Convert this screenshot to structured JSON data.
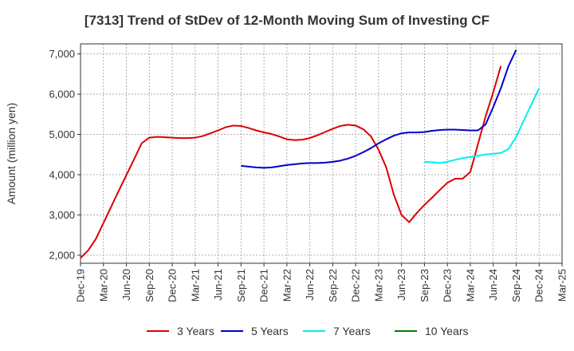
{
  "chart_data": {
    "type": "line",
    "title": "[7313]  Trend of StDev of 12-Month Moving Sum of Investing CF",
    "ylabel": "Amount (million yen)",
    "xlabel": "",
    "ylim": [
      1800,
      7250
    ],
    "yticks": [
      2000,
      3000,
      4000,
      5000,
      6000,
      7000
    ],
    "ytick_labels": [
      "2,000",
      "3,000",
      "4,000",
      "5,000",
      "6,000",
      "7,000"
    ],
    "xticks": [
      "Dec-19",
      "Mar-20",
      "Jun-20",
      "Sep-20",
      "Dec-20",
      "Mar-21",
      "Jun-21",
      "Sep-21",
      "Dec-21",
      "Mar-22",
      "Jun-22",
      "Sep-22",
      "Dec-22",
      "Mar-23",
      "Jun-23",
      "Sep-23",
      "Dec-23",
      "Mar-24",
      "Jun-24",
      "Sep-24",
      "Dec-24",
      "Mar-25"
    ],
    "grid": true,
    "legend_position": "bottom",
    "series": [
      {
        "name": "3 Years",
        "color": "#dd0000",
        "start_month": 0,
        "values": [
          1930,
          2120,
          2400,
          2800,
          3200,
          3600,
          3990,
          4380,
          4780,
          4920,
          4940,
          4930,
          4920,
          4910,
          4910,
          4920,
          4960,
          5030,
          5100,
          5180,
          5220,
          5210,
          5160,
          5100,
          5050,
          5010,
          4950,
          4880,
          4860,
          4870,
          4910,
          4980,
          5060,
          5140,
          5210,
          5240,
          5220,
          5130,
          4950,
          4620,
          4180,
          3500,
          3000,
          2820,
          3050,
          3250,
          3430,
          3620,
          3800,
          3900,
          3900,
          4070,
          4760,
          5450,
          6050,
          6700
        ]
      },
      {
        "name": "5 Years",
        "color": "#0000cc",
        "start_month": 21,
        "values": [
          4220,
          4200,
          4180,
          4170,
          4180,
          4210,
          4240,
          4260,
          4280,
          4290,
          4290,
          4300,
          4320,
          4350,
          4400,
          4470,
          4560,
          4660,
          4780,
          4880,
          4970,
          5030,
          5050,
          5050,
          5060,
          5090,
          5110,
          5120,
          5120,
          5110,
          5100,
          5100,
          5250,
          5680,
          6150,
          6700,
          7100
        ]
      },
      {
        "name": "7 Years",
        "color": "#00eeee",
        "start_month": 45,
        "values": [
          4320,
          4310,
          4290,
          4320,
          4370,
          4410,
          4440,
          4470,
          4500,
          4520,
          4540,
          4640,
          4940,
          5350,
          5750,
          6150
        ]
      },
      {
        "name": "10 Years",
        "color": "#008000",
        "start_month": 0,
        "values": []
      }
    ]
  }
}
